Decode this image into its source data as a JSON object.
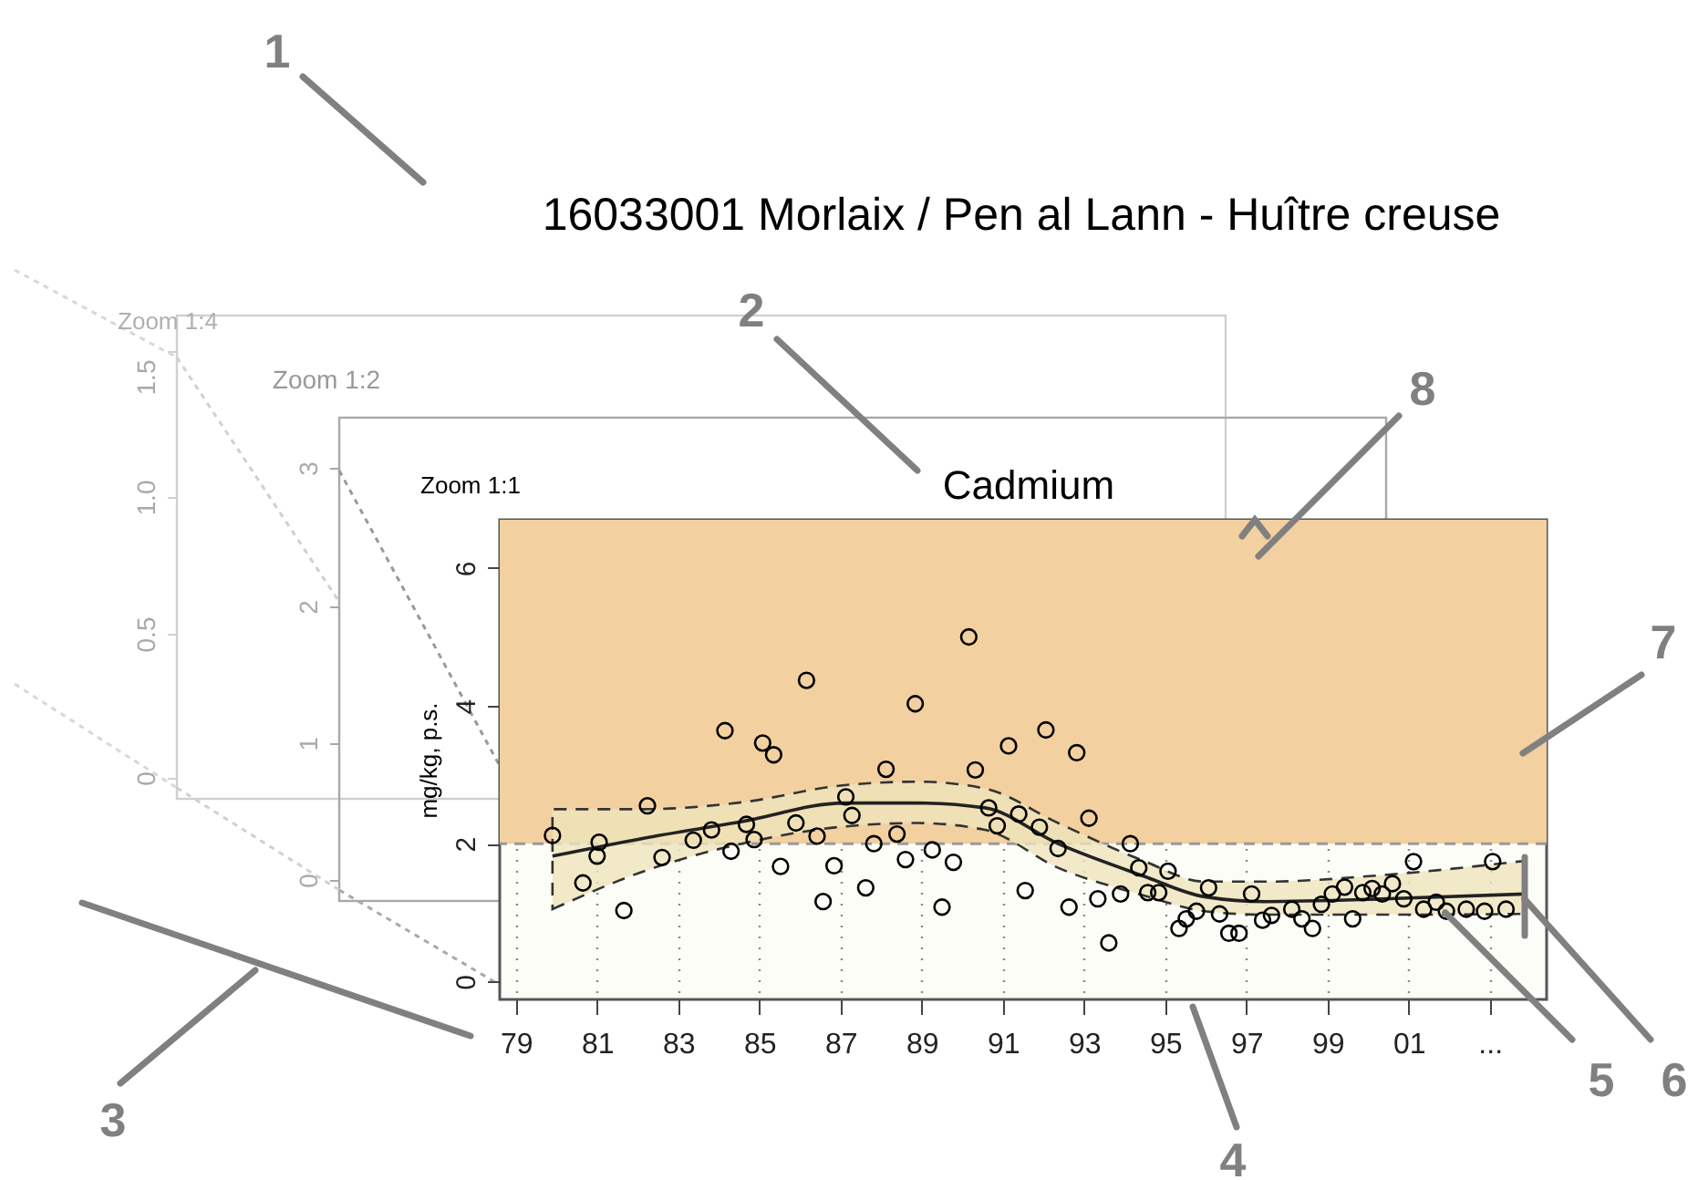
{
  "chart_data": {
    "type": "scatter",
    "title": "16033001 Morlaix / Pen al Lann - Huître creuse",
    "subtitle": "Cadmium",
    "ylabel": "mg/kg, p.s.",
    "xlim": [
      1978.6,
      2004.4
    ],
    "ylim": [
      -0.26,
      6.7
    ],
    "xticks": [
      {
        "value": 1979,
        "label": "79"
      },
      {
        "value": 1981,
        "label": "81"
      },
      {
        "value": 1983,
        "label": "83"
      },
      {
        "value": 1985,
        "label": "85"
      },
      {
        "value": 1987,
        "label": "87"
      },
      {
        "value": 1989,
        "label": "89"
      },
      {
        "value": 1991,
        "label": "91"
      },
      {
        "value": 1993,
        "label": "93"
      },
      {
        "value": 1995,
        "label": "95"
      },
      {
        "value": 1997,
        "label": "97"
      },
      {
        "value": 1999,
        "label": "99"
      },
      {
        "value": 2001,
        "label": "01"
      },
      {
        "value": 2003,
        "label": "..."
      }
    ],
    "yticks": [
      0,
      2,
      4,
      6
    ],
    "grid": "x",
    "bands": [
      {
        "axis": "y",
        "from": 2,
        "to": 6.7,
        "color": "#f2d0a0"
      }
    ],
    "ref_lines": [
      {
        "axis": "y",
        "value": 2,
        "color": "#999999",
        "line_style": "dashed"
      }
    ],
    "series": [
      {
        "type": "scatter",
        "marker": "circle",
        "color": "#000000",
        "x": [
          1979.9,
          1980.65,
          1981.0,
          1981.05,
          1981.66,
          1982.24,
          1982.6,
          1983.37,
          1983.82,
          1984.15,
          1984.3,
          1984.68,
          1984.87,
          1985.08,
          1985.35,
          1985.52,
          1985.9,
          1986.16,
          1986.42,
          1986.57,
          1986.84,
          1987.13,
          1987.28,
          1987.62,
          1987.82,
          1988.12,
          1988.39,
          1988.6,
          1988.84,
          1989.26,
          1989.5,
          1989.78,
          1990.16,
          1990.32,
          1990.65,
          1990.86,
          1991.14,
          1991.39,
          1991.55,
          1991.9,
          1992.06,
          1992.36,
          1992.63,
          1992.82,
          1993.12,
          1993.34,
          1993.61,
          1993.9,
          1994.14,
          1994.35,
          1994.57,
          1994.84,
          1995.07,
          1995.34,
          1995.52,
          1995.77,
          1996.07,
          1996.34,
          1996.57,
          1996.82,
          1997.13,
          1997.4,
          1997.62,
          1998.12,
          1998.37,
          1998.63,
          1998.85,
          1999.12,
          1999.42,
          1999.62,
          1999.87,
          2000.1,
          2000.35,
          2000.6,
          2000.88,
          2001.12,
          2001.37,
          2001.68,
          2001.93,
          2002.42,
          2002.87,
          2003.07,
          2003.4
        ],
        "values": [
          2.12,
          1.43,
          1.82,
          2.02,
          1.03,
          2.55,
          1.8,
          2.05,
          2.2,
          3.64,
          1.89,
          2.28,
          2.06,
          3.46,
          3.29,
          1.67,
          2.3,
          4.37,
          2.11,
          1.16,
          1.68,
          2.68,
          2.41,
          1.36,
          2.0,
          3.08,
          2.14,
          1.77,
          4.03,
          1.91,
          1.08,
          1.73,
          5.0,
          3.07,
          2.52,
          2.26,
          3.42,
          2.43,
          1.32,
          2.24,
          3.65,
          1.93,
          1.08,
          3.32,
          2.37,
          1.2,
          0.56,
          1.27,
          2.0,
          1.65,
          1.29,
          1.29,
          1.6,
          0.77,
          0.91,
          1.02,
          1.36,
          0.98,
          0.7,
          0.7,
          1.27,
          0.89,
          0.96,
          1.05,
          0.91,
          0.77,
          1.12,
          1.27,
          1.37,
          0.91,
          1.29,
          1.35,
          1.27,
          1.42,
          1.2,
          1.74,
          1.05,
          1.15,
          1.02,
          1.05,
          1.02,
          1.74,
          1.05
        ]
      },
      {
        "type": "line",
        "marker": "none",
        "color": "#222222",
        "x": [
          1979.9,
          1982.15,
          1984.56,
          1987.1,
          1988.9,
          1990.56,
          1992.36,
          1994.47,
          1995.97,
          1997.47,
          2000.47,
          2003.85
        ],
        "values": [
          1.82,
          2.08,
          2.32,
          2.59,
          2.59,
          2.52,
          2.0,
          1.53,
          1.23,
          1.16,
          1.2,
          1.27
        ],
        "upper": [
          2.5,
          2.5,
          2.6,
          2.85,
          2.9,
          2.8,
          2.3,
          1.75,
          1.45,
          1.45,
          1.55,
          1.75
        ],
        "lower": [
          1.05,
          1.6,
          2.0,
          2.25,
          2.3,
          2.2,
          1.65,
          1.25,
          1.02,
          0.97,
          0.97,
          0.98
        ]
      }
    ],
    "annotations": [
      "1",
      "2",
      "3",
      "4",
      {
        "text": "5",
        "x": 2001.9,
        "y": 1.0
      },
      {
        "text": "6",
        "x": 2003.85,
        "y": 1.2
      },
      "7",
      "8",
      "Zoom 1:1",
      "Zoom 1:2",
      "Zoom 1:4",
      "1.5",
      "1.0",
      "0.5",
      "0",
      "3",
      "2",
      "1",
      "0"
    ]
  }
}
